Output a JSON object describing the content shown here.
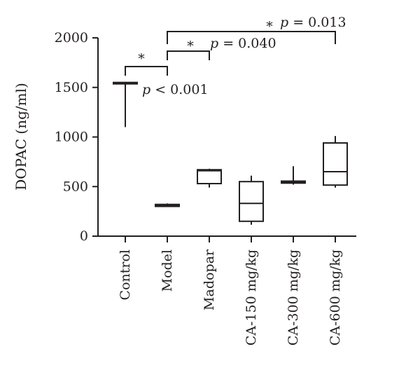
{
  "chart_data": {
    "type": "box",
    "ylabel": "DOPAC (ng/ml)",
    "ylim": [
      0,
      2000
    ],
    "yticks": [
      0,
      500,
      1000,
      1500,
      2000
    ],
    "categories": [
      "Control",
      "Model",
      "Madopar",
      "CA-150 mg/kg",
      "CA-300 mg/kg",
      "CA-600 mg/kg"
    ],
    "boxes": [
      {
        "min": 1100,
        "q1": 1540,
        "median": 1545,
        "q3": 1550,
        "max": 1550
      },
      {
        "min": 295,
        "q1": 300,
        "median": 310,
        "q3": 320,
        "max": 330
      },
      {
        "min": 490,
        "q1": 530,
        "median": 660,
        "q3": 670,
        "max": 680
      },
      {
        "min": 115,
        "q1": 150,
        "median": 330,
        "q3": 550,
        "max": 610
      },
      {
        "min": 520,
        "q1": 535,
        "median": 545,
        "q3": 555,
        "max": 705
      },
      {
        "min": 490,
        "q1": 515,
        "median": 650,
        "q3": 940,
        "max": 1010
      }
    ],
    "annotations": [
      {
        "from": "Control",
        "to": "Model",
        "star": "*",
        "p_symbol": "p",
        "p_text": " < 0.001"
      },
      {
        "from": "Model",
        "to": "Madopar",
        "star": "*",
        "p_symbol": "p",
        "p_text": " = 0.040"
      },
      {
        "from": "Model",
        "to": "CA-600 mg/kg",
        "star": "*",
        "p_symbol": "p",
        "p_text": " = 0.013"
      }
    ]
  }
}
